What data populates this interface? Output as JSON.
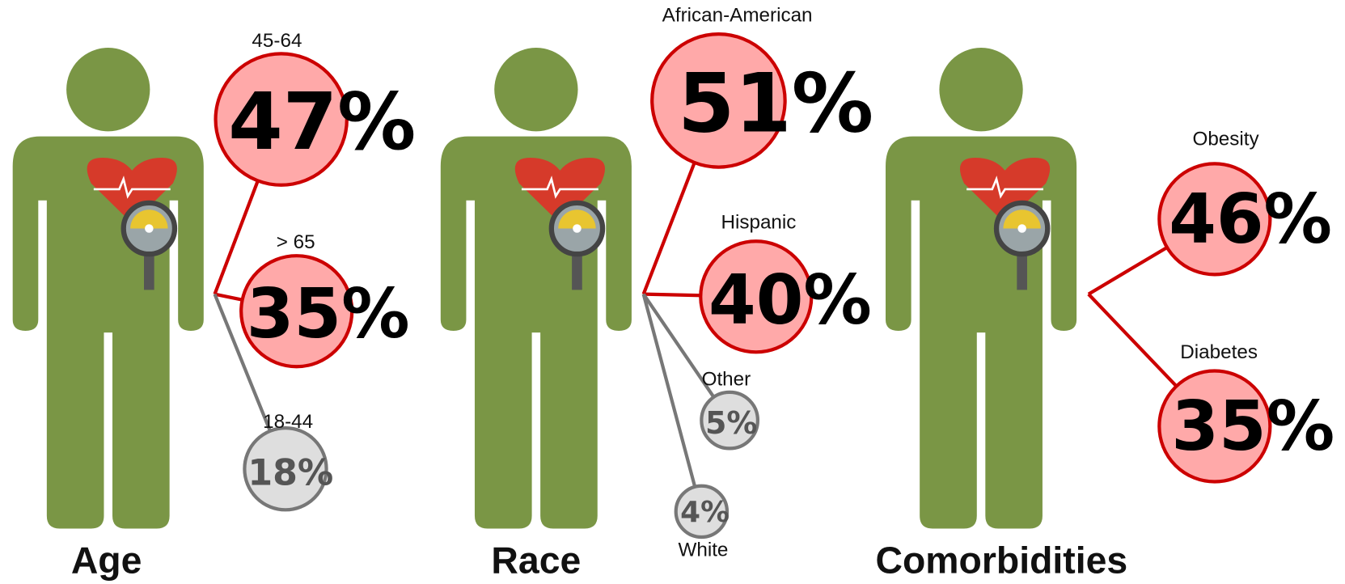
{
  "panels": [
    {
      "title": "Age",
      "groups": [
        {
          "label": "45-64",
          "value": "47%"
        },
        {
          "label": "> 65",
          "value": "35%"
        },
        {
          "label": "18-44",
          "value": "18%"
        }
      ]
    },
    {
      "title": "Race",
      "groups": [
        {
          "label": "African-American",
          "value": "51%"
        },
        {
          "label": "Hispanic",
          "value": "40%"
        },
        {
          "label": "Other",
          "value": "5%"
        },
        {
          "label": "White",
          "value": "4%"
        }
      ]
    },
    {
      "title": "Comorbidities",
      "groups": [
        {
          "label": "Obesity",
          "value": "46%"
        },
        {
          "label": "Diabetes",
          "value": "35%"
        }
      ]
    }
  ]
}
